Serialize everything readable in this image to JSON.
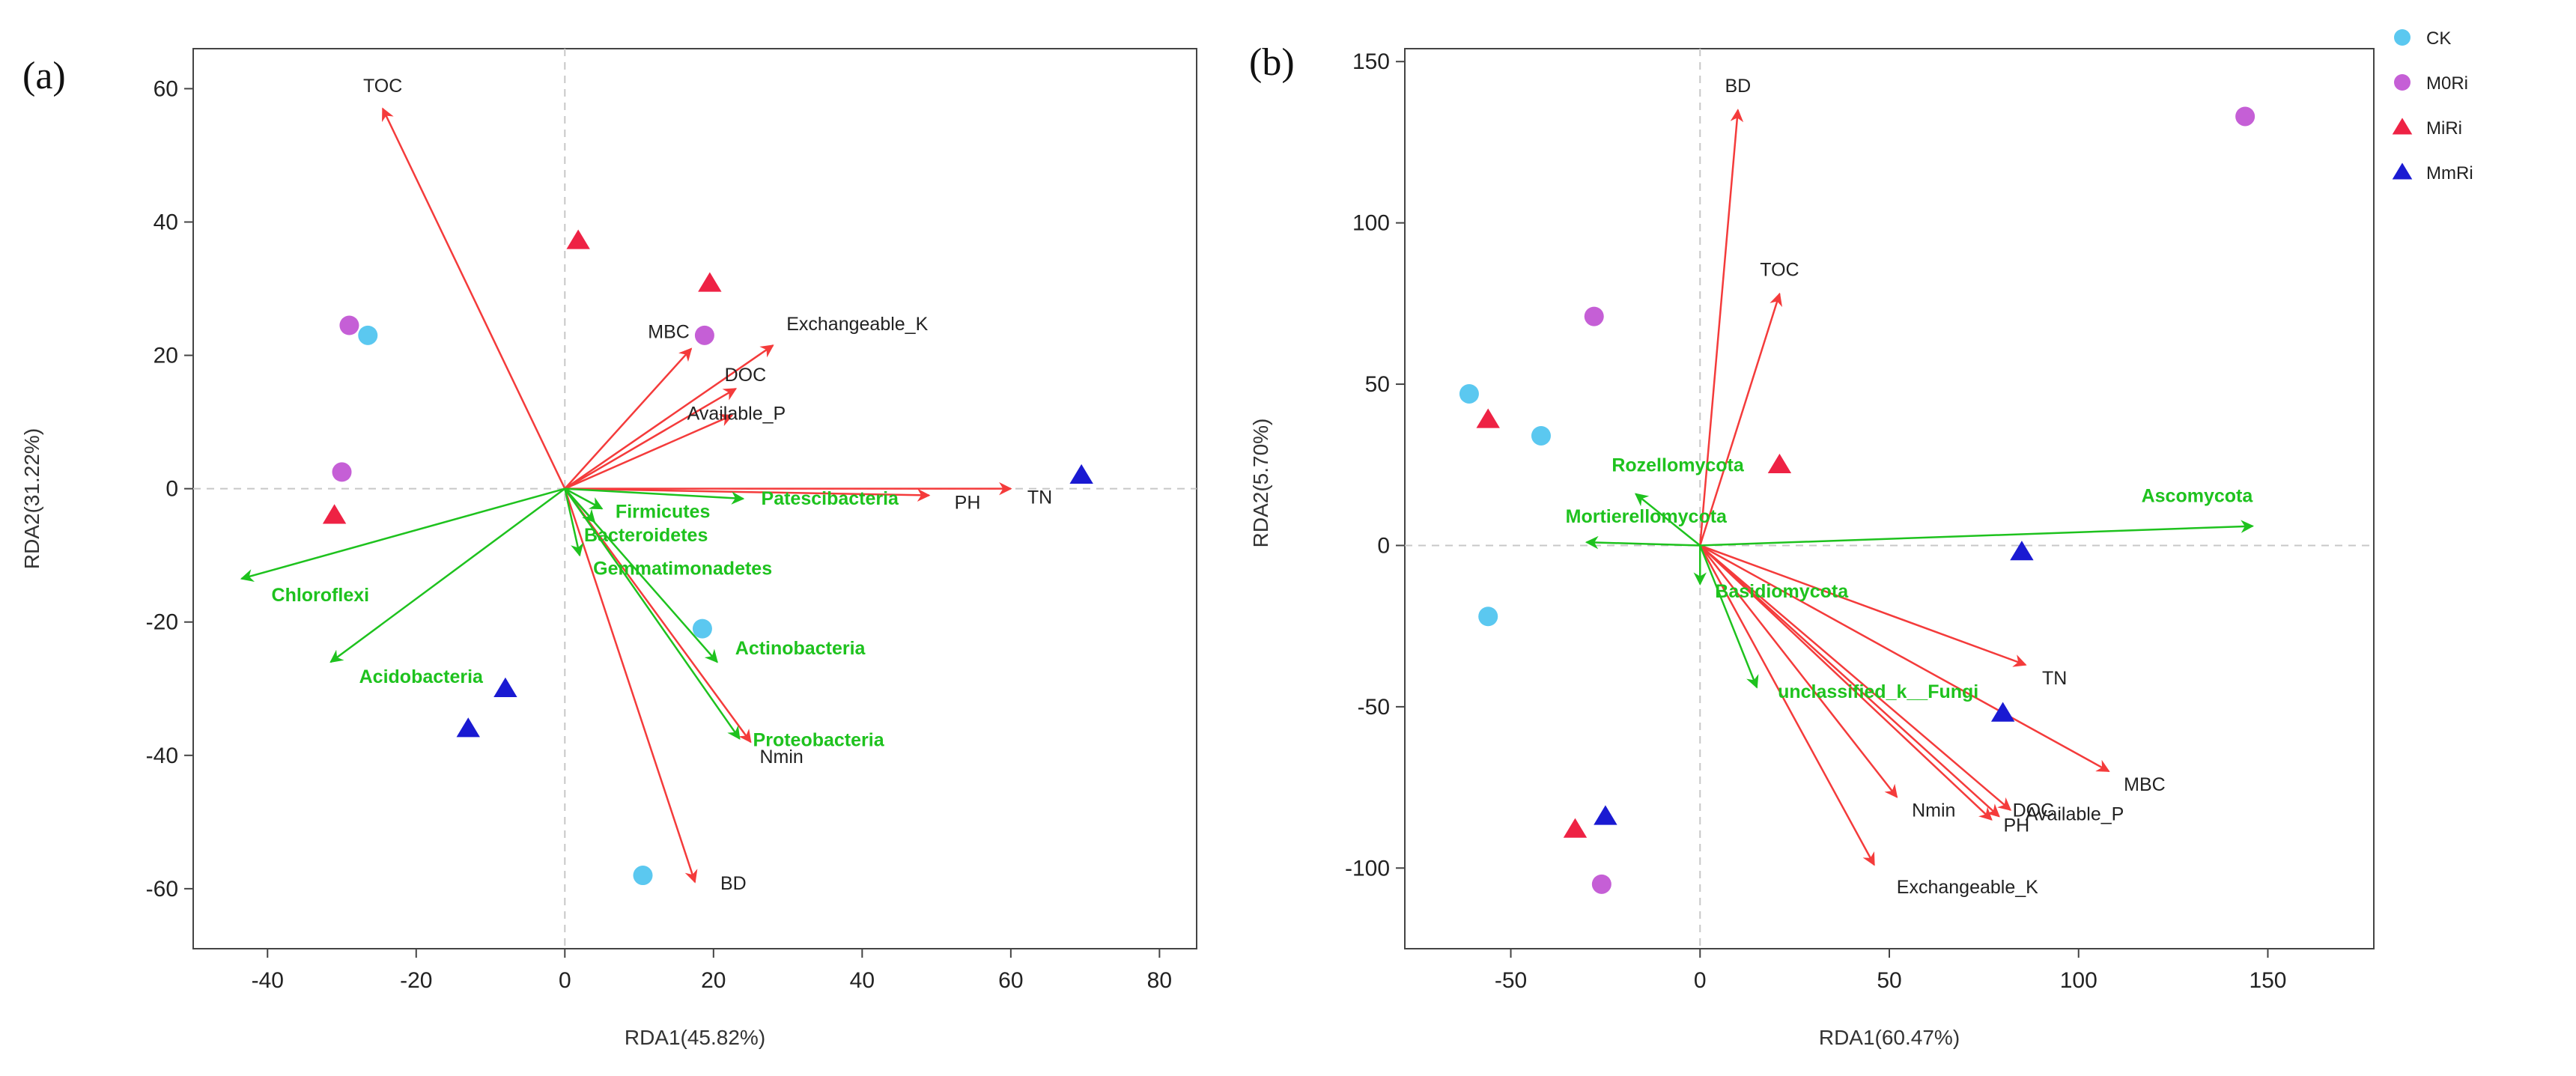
{
  "legend": [
    {
      "name": "CK",
      "shape": "circle",
      "color": "#5bc8f0"
    },
    {
      "name": "M0Ri",
      "shape": "circle",
      "color": "#c55fd6"
    },
    {
      "name": "MiRi",
      "shape": "triangle",
      "color": "#ee2244"
    },
    {
      "name": "MmRi",
      "shape": "triangle",
      "color": "#1a1ad2"
    }
  ],
  "colors": {
    "env": "#f43b3b",
    "species": "#1ec21e",
    "zero_line": "#c8c8c8"
  },
  "chart_data": [
    {
      "type": "scatter",
      "panel_label": "(a)",
      "xlabel": "RDA1(45.82%)",
      "ylabel": "RDA2(31.22%)",
      "xlim": [
        -50,
        85
      ],
      "ylim": [
        -69,
        66
      ],
      "xticks": [
        -40,
        -20,
        0,
        20,
        40,
        60,
        80
      ],
      "yticks": [
        -60,
        -40,
        -20,
        0,
        20,
        40,
        60
      ],
      "points": [
        {
          "group": "CK",
          "x": -26.5,
          "y": 23
        },
        {
          "group": "CK",
          "x": 18.5,
          "y": -21
        },
        {
          "group": "CK",
          "x": 10.5,
          "y": -58
        },
        {
          "group": "M0Ri",
          "x": -29,
          "y": 24.5
        },
        {
          "group": "M0Ri",
          "x": -30,
          "y": 2.5
        },
        {
          "group": "M0Ri",
          "x": 18.8,
          "y": 23
        },
        {
          "group": "MiRi",
          "x": 1.8,
          "y": 37.2
        },
        {
          "group": "MiRi",
          "x": 19.5,
          "y": 30.8
        },
        {
          "group": "MiRi",
          "x": -31,
          "y": -4
        },
        {
          "group": "MmRi",
          "x": 69.5,
          "y": 2
        },
        {
          "group": "MmRi",
          "x": -8,
          "y": -30
        },
        {
          "group": "MmRi",
          "x": -13,
          "y": -36
        }
      ],
      "env_vectors": [
        {
          "label": "TOC",
          "x": -24.5,
          "y": 57
        },
        {
          "label": "MBC",
          "x": 17,
          "y": 21
        },
        {
          "label": "Exchangeable_K",
          "x": 28,
          "y": 21.5
        },
        {
          "label": "DOC",
          "x": 23,
          "y": 15
        },
        {
          "label": "Available_P",
          "x": 22.5,
          "y": 11
        },
        {
          "label": "PH",
          "x": 49,
          "y": -1
        },
        {
          "label": "TN",
          "x": 60,
          "y": 0
        },
        {
          "label": "Nmin",
          "x": 25,
          "y": -38
        },
        {
          "label": "BD",
          "x": 17.5,
          "y": -59
        }
      ],
      "species_vectors": [
        {
          "label": "Chloroflexi",
          "x": -43.5,
          "y": -13.5
        },
        {
          "label": "Acidobacteria",
          "x": -31.5,
          "y": -26
        },
        {
          "label": "Firmicutes",
          "x": 5,
          "y": -3
        },
        {
          "label": "Bacteroidetes",
          "x": 4,
          "y": -5
        },
        {
          "label": "Patescibacteria",
          "x": 24,
          "y": -1.5
        },
        {
          "label": "Gemmatimonadetes",
          "x": 2,
          "y": -10
        },
        {
          "label": "Actinobacteria",
          "x": 20.5,
          "y": -26
        },
        {
          "label": "Proteobacteria",
          "x": 23.5,
          "y": -37.5
        }
      ]
    },
    {
      "type": "scatter",
      "panel_label": "(b)",
      "xlabel": "RDA1(60.47%)",
      "ylabel": "RDA2(5.70%)",
      "xlim": [
        -78,
        178
      ],
      "ylim": [
        -125,
        154
      ],
      "xticks": [
        -50,
        0,
        50,
        100,
        150
      ],
      "yticks": [
        -100,
        -50,
        0,
        50,
        100,
        150
      ],
      "points": [
        {
          "group": "CK",
          "x": -61,
          "y": 47
        },
        {
          "group": "CK",
          "x": -42,
          "y": 34
        },
        {
          "group": "CK",
          "x": -56,
          "y": -22
        },
        {
          "group": "M0Ri",
          "x": -28,
          "y": 71
        },
        {
          "group": "M0Ri",
          "x": 144,
          "y": 133
        },
        {
          "group": "M0Ri",
          "x": -26,
          "y": -105
        },
        {
          "group": "MiRi",
          "x": -56,
          "y": 39
        },
        {
          "group": "MiRi",
          "x": 21,
          "y": 25
        },
        {
          "group": "MiRi",
          "x": -33,
          "y": -88
        },
        {
          "group": "MmRi",
          "x": 85,
          "y": -2
        },
        {
          "group": "MmRi",
          "x": 80,
          "y": -52
        },
        {
          "group": "MmRi",
          "x": -25,
          "y": -84
        }
      ],
      "env_vectors": [
        {
          "label": "BD",
          "x": 10,
          "y": 135
        },
        {
          "label": "TOC",
          "x": 21,
          "y": 78
        },
        {
          "label": "TN",
          "x": 86,
          "y": -37
        },
        {
          "label": "MBC",
          "x": 108,
          "y": -70
        },
        {
          "label": "Available_P",
          "x": 82,
          "y": -82
        },
        {
          "label": "DOC",
          "x": 79,
          "y": -84
        },
        {
          "label": "PH",
          "x": 77,
          "y": -85
        },
        {
          "label": "Nmin",
          "x": 52,
          "y": -78
        },
        {
          "label": "Exchangeable_K",
          "x": 46,
          "y": -99
        }
      ],
      "species_vectors": [
        {
          "label": "Ascomycota",
          "x": 146,
          "y": 6
        },
        {
          "label": "Rozellomycota",
          "x": -17,
          "y": 16
        },
        {
          "label": "Mortierellomycota",
          "x": -30,
          "y": 1
        },
        {
          "label": "Basidiomycota",
          "x": 0,
          "y": -12
        },
        {
          "label": "unclassified_k__Fungi",
          "x": 15,
          "y": -44
        }
      ]
    }
  ]
}
